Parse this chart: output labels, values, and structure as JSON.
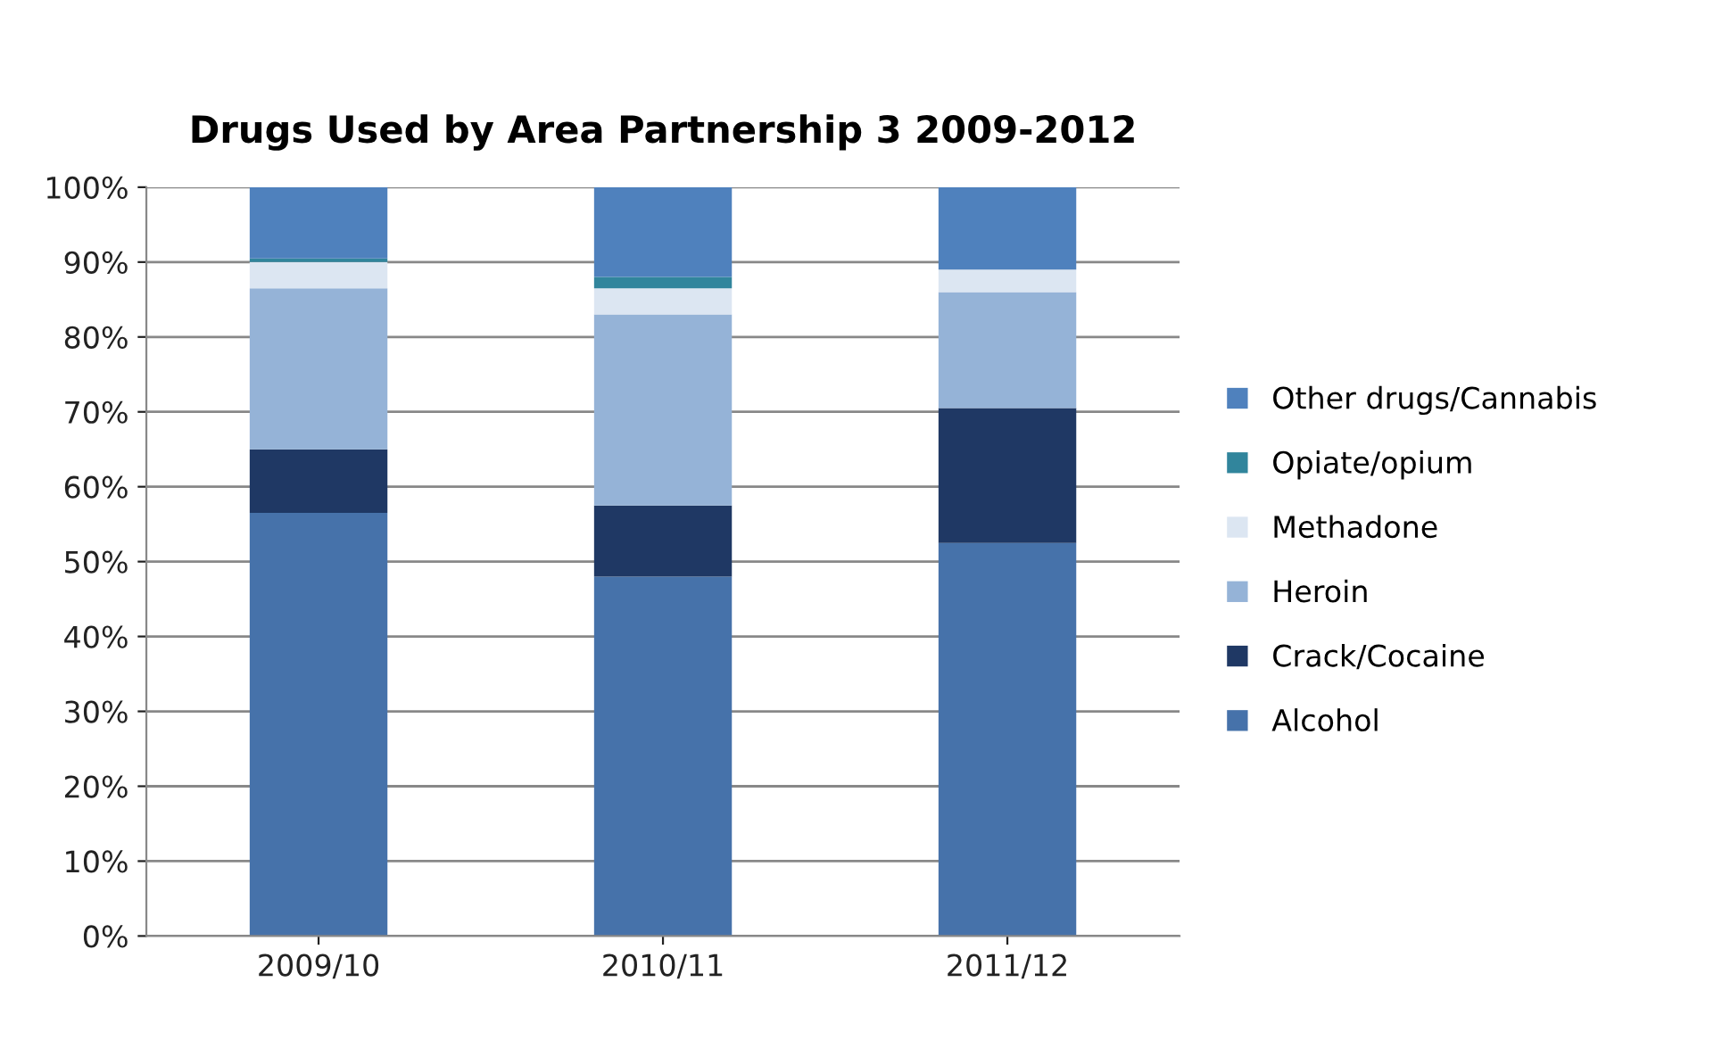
{
  "chart_data": {
    "type": "bar",
    "title": "Drugs Used by Area Partnership 3 2009-2012",
    "stacked": true,
    "categories": [
      "2009/10",
      "2010/11",
      "2011/12"
    ],
    "series": [
      {
        "name": "Alcohol",
        "color": "#4672aa",
        "values": [
          56.5,
          48,
          52.5
        ]
      },
      {
        "name": "Crack/Cocaine",
        "color": "#1f3864",
        "values": [
          8.5,
          9.5,
          18
        ]
      },
      {
        "name": "Heroin",
        "color": "#95b3d7",
        "values": [
          21.5,
          25.5,
          15.5
        ]
      },
      {
        "name": "Methadone",
        "color": "#dce6f2",
        "values": [
          3.5,
          3.5,
          3
        ]
      },
      {
        "name": "Opiate/opium",
        "color": "#31859c",
        "values": [
          0.5,
          1.5,
          0
        ]
      },
      {
        "name": "Other drugs/Cannabis",
        "color": "#4f81bd",
        "values": [
          9.5,
          12,
          11
        ]
      }
    ],
    "ylim": [
      0,
      100
    ],
    "yticks": [
      {
        "value": 0,
        "label": "0%"
      },
      {
        "value": 10,
        "label": "10%"
      },
      {
        "value": 20,
        "label": "20%"
      },
      {
        "value": 30,
        "label": "30%"
      },
      {
        "value": 40,
        "label": "40%"
      },
      {
        "value": 50,
        "label": "50%"
      },
      {
        "value": 60,
        "label": "60%"
      },
      {
        "value": 70,
        "label": "70%"
      },
      {
        "value": 80,
        "label": "80%"
      },
      {
        "value": 90,
        "label": "90%"
      },
      {
        "value": 100,
        "label": "100%"
      }
    ],
    "grid": "y",
    "legend": "right"
  }
}
